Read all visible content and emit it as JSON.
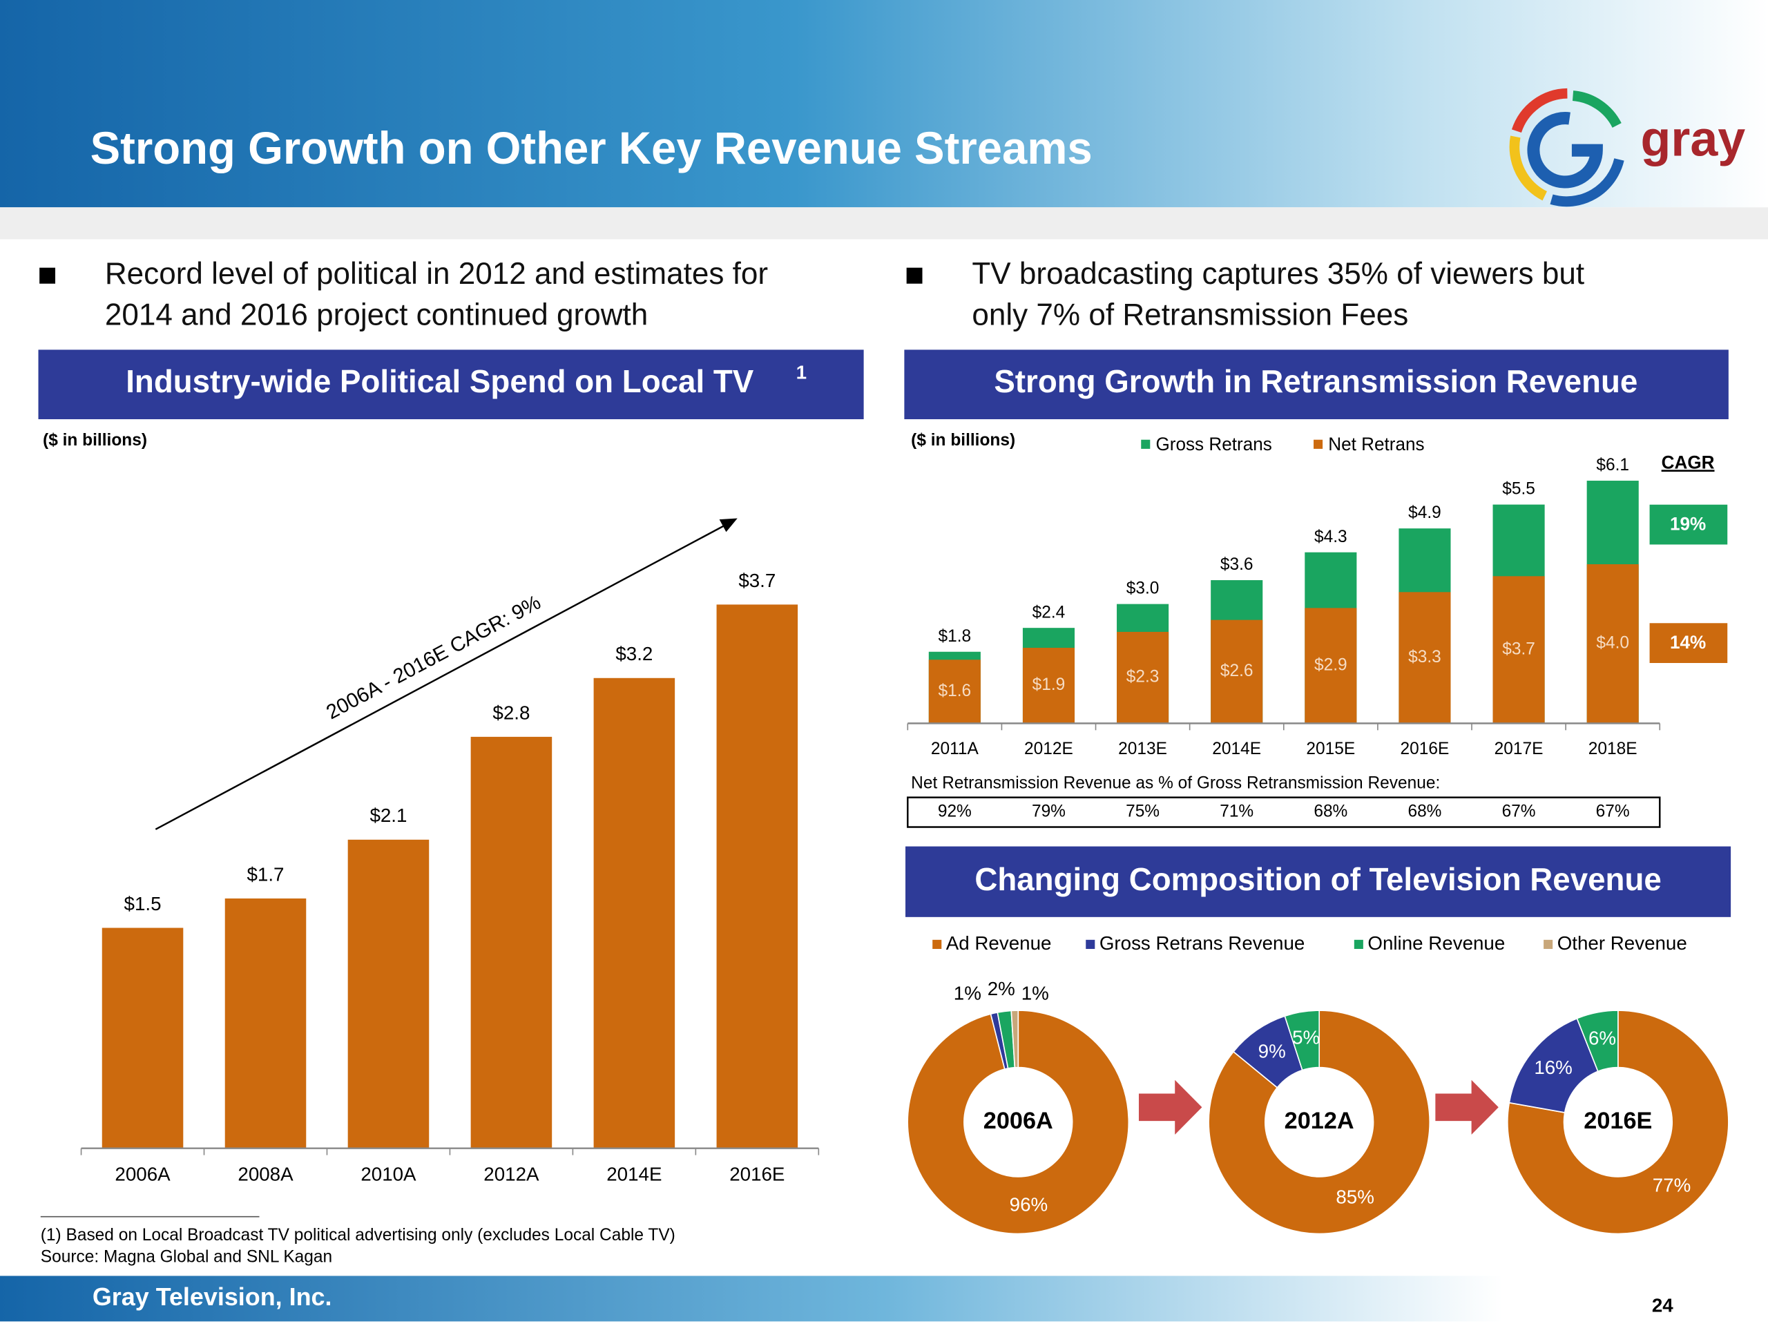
{
  "header": {
    "title": "Strong Growth on Other Key Revenue Streams",
    "logo": "gray"
  },
  "bullets": [
    {
      "lines": [
        "Record level of political in 2012 and estimates for",
        "2014 and 2016 project continued growth"
      ]
    },
    {
      "lines": [
        "TV broadcasting captures 35% of viewers but",
        "only 7% of Retransmission Fees"
      ]
    }
  ],
  "chart_data": [
    {
      "type": "bar",
      "title": "Industry-wide Political Spend on Local TV",
      "title_note": "1",
      "unit_note": "($ in billions)",
      "categories": [
        "2006A",
        "2008A",
        "2010A",
        "2012A",
        "2014E",
        "2016E"
      ],
      "values": [
        1.5,
        1.7,
        2.1,
        2.8,
        3.2,
        3.7
      ],
      "value_labels": [
        "$1.5",
        "$1.7",
        "$2.1",
        "$2.8",
        "$3.2",
        "$3.7"
      ],
      "color": "#cc6a0e",
      "ylim": [
        0,
        4
      ],
      "annotation": "2006A - 2016E CAGR: 9%"
    },
    {
      "type": "overlay-bar",
      "title": "Strong Growth in Retransmission Revenue",
      "unit_note": "($ in billions)",
      "categories": [
        "2011A",
        "2012E",
        "2013E",
        "2014E",
        "2015E",
        "2016E",
        "2017E",
        "2018E"
      ],
      "series": [
        {
          "name": "Gross Retrans",
          "color": "#1aa560",
          "values": [
            1.8,
            2.4,
            3.0,
            3.6,
            4.3,
            4.9,
            5.5,
            6.1
          ],
          "value_labels": [
            "$1.8",
            "$2.4",
            "$3.0",
            "$3.6",
            "$4.3",
            "$4.9",
            "$5.5",
            "$6.1"
          ],
          "cagr": "19%"
        },
        {
          "name": "Net Retrans",
          "color": "#cc6a0e",
          "values": [
            1.6,
            1.9,
            2.3,
            2.6,
            2.9,
            3.3,
            3.7,
            4.0
          ],
          "value_labels": [
            "$1.6",
            "$1.9",
            "$2.3",
            "$2.6",
            "$2.9",
            "$3.3",
            "$3.7",
            "$4.0"
          ],
          "cagr": "14%"
        }
      ],
      "cagr_title": "CAGR",
      "ylim": [
        0,
        6.5
      ],
      "net_pct_title": "Net Retransmission Revenue as % of Gross Retransmission Revenue:",
      "net_pct": [
        "92%",
        "79%",
        "75%",
        "71%",
        "68%",
        "68%",
        "67%",
        "67%"
      ]
    },
    {
      "type": "donut",
      "title": "Changing Composition of Television Revenue",
      "categories": [
        "Ad Revenue",
        "Gross Retrans Revenue",
        "Online Revenue",
        "Other Revenue"
      ],
      "colors": [
        "#cc6a0e",
        "#2e3a9a",
        "#1aa560",
        "#c8a77a"
      ],
      "pies": [
        {
          "label": "2006A",
          "values": [
            96,
            1,
            2,
            1
          ],
          "value_labels": [
            "96%",
            "1%",
            "2%",
            "1%"
          ]
        },
        {
          "label": "2012A",
          "values": [
            85,
            9,
            5,
            null
          ],
          "value_labels": [
            "85%",
            "9%",
            "5%",
            null
          ]
        },
        {
          "label": "2016E",
          "values": [
            77,
            16,
            6,
            null
          ],
          "value_labels": [
            "77%",
            "16%",
            "6%",
            null
          ]
        }
      ]
    }
  ],
  "footnotes": [
    "(1) Based on Local Broadcast TV political advertising only (excludes Local Cable TV)",
    "Source: Magna Global and SNL Kagan"
  ],
  "footer": {
    "company": "Gray Television, Inc.",
    "page": "24"
  }
}
